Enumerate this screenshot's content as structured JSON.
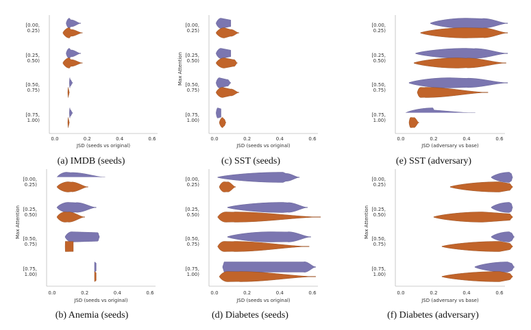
{
  "colors": {
    "upper": "#7b76b0",
    "lower": "#c1642a",
    "upper_edge": "#57528a",
    "lower_edge": "#8c4418",
    "axis": "#bbbbbb"
  },
  "chart_data": [
    {
      "type": "violin",
      "caption": "(a) IMDB (seeds)",
      "xlabel": "JSD (seeds vs original)",
      "ylabel": "",
      "xlim": [
        0.0,
        0.6
      ],
      "xticks": [
        "0.0",
        "0.2",
        "0.4",
        "0.6"
      ],
      "categories": [
        [
          "[0.00,",
          "0.25)"
        ],
        [
          "[0.25,",
          "0.50)"
        ],
        [
          "[0.50,",
          "0.75)"
        ],
        [
          "[0.75,",
          "1.00)"
        ]
      ],
      "series": [
        {
          "values": [
            [
              0.07,
              0.09,
              0.1,
              0.1,
              0.16
            ],
            [
              0.07,
              0.09,
              0.1,
              0.1,
              0.16
            ],
            [
              0.09,
              0.093,
              0.094,
              0.095,
              0.11
            ],
            [
              0.09,
              0.093,
              0.094,
              0.095,
              0.11
            ]
          ]
        },
        {
          "values": [
            [
              0.05,
              0.09,
              0.1,
              0.07,
              0.17
            ],
            [
              0.05,
              0.09,
              0.1,
              0.07,
              0.17
            ],
            [
              0.08,
              0.083,
              0.084,
              0.085,
              0.09
            ],
            [
              0.08,
              0.083,
              0.084,
              0.085,
              0.09
            ]
          ]
        }
      ]
    },
    {
      "type": "violin",
      "caption": "(c) SST (seeds)",
      "xlabel": "JSD (seeds vs original)",
      "ylabel": "Max Attention",
      "xlim": [
        0.0,
        0.6
      ],
      "xticks": [
        "0.0",
        "0.2",
        "0.4",
        "0.6"
      ],
      "categories": [
        [
          "[0.00,",
          "0.25)"
        ],
        [
          "[0.25,",
          "0.50)"
        ],
        [
          "[0.50,",
          "0.75)"
        ],
        [
          "[0.75,",
          "1.00)"
        ]
      ],
      "series": [
        {
          "values": [
            [
              0.01,
              0.04,
              0.1,
              0.08,
              0.1
            ],
            [
              0.01,
              0.04,
              0.1,
              0.08,
              0.1
            ],
            [
              0.01,
              0.03,
              0.08,
              0.08,
              0.1
            ],
            [
              0.01,
              0.02,
              0.06,
              0.08,
              0.04
            ]
          ]
        },
        {
          "values": [
            [
              0.01,
              0.06,
              0.1,
              0.1,
              0.15
            ],
            [
              0.01,
              0.06,
              0.12,
              0.1,
              0.14
            ],
            [
              0.01,
              0.05,
              0.1,
              0.1,
              0.15
            ],
            [
              0.03,
              0.05,
              0.06,
              0.1,
              0.07
            ]
          ]
        }
      ]
    },
    {
      "type": "violin",
      "caption": "(e) SST (adversary)",
      "xlabel": "JSD (adversary vs base)",
      "ylabel": "",
      "xlim": [
        0.0,
        0.6
      ],
      "xticks": [
        "0.0",
        "0.2",
        "0.4",
        "0.6"
      ],
      "categories": [
        [
          "[0.00,",
          "0.25)"
        ],
        [
          "[0.25,",
          "0.50)"
        ],
        [
          "[0.50,",
          "0.75)"
        ],
        [
          "[0.75,",
          "1.00)"
        ]
      ],
      "series": [
        {
          "values": [
            [
              0.18,
              0.4,
              0.5,
              0.75,
              0.65
            ],
            [
              0.09,
              0.4,
              0.45,
              0.8,
              0.65
            ],
            [
              0.05,
              0.3,
              0.4,
              0.7,
              0.65
            ],
            [
              0.03,
              0.2,
              0.05,
              0.3,
              0.46
            ]
          ]
        },
        {
          "values": [
            [
              0.12,
              0.4,
              0.5,
              0.8,
              0.65
            ],
            [
              0.08,
              0.35,
              0.4,
              0.8,
              0.64
            ],
            [
              0.1,
              0.12,
              0.15,
              0.9,
              0.53
            ],
            [
              0.05,
              0.06,
              0.08,
              0.9,
              0.11
            ]
          ]
        }
      ]
    },
    {
      "type": "violin",
      "caption": "(b) Anemia (seeds)",
      "xlabel": "JSD (seeds vs original)",
      "ylabel": "Max Attention",
      "xlim": [
        0.0,
        0.6
      ],
      "xticks": [
        "0.0",
        "0.2",
        "0.4",
        "0.6"
      ],
      "categories": [
        [
          "[0.00,",
          "0.25)"
        ],
        [
          "[0.25,",
          "0.50)"
        ],
        [
          "[0.50,",
          "0.75)"
        ],
        [
          "[0.75,",
          "1.00)"
        ]
      ],
      "series": [
        {
          "values": [
            [
              0.03,
              0.09,
              0.12,
              0.75,
              0.33
            ],
            [
              0.03,
              0.1,
              0.15,
              0.8,
              0.27
            ],
            [
              0.08,
              0.12,
              0.28,
              0.6,
              0.29
            ],
            [
              0.26,
              0.26,
              0.27,
              0.4,
              0.27
            ]
          ]
        },
        {
          "values": [
            [
              0.03,
              0.1,
              0.12,
              0.8,
              0.22
            ],
            [
              0.03,
              0.08,
              0.1,
              0.9,
              0.2
            ],
            [
              0.08,
              0.08,
              0.13,
              0.95,
              0.13
            ],
            [
              0.26,
              0.26,
              0.27,
              0.4,
              0.27
            ]
          ]
        }
      ]
    },
    {
      "type": "violin",
      "caption": "(d) Diabetes (seeds)",
      "xlabel": "JSD (seeds vs original)",
      "ylabel": "",
      "xlim": [
        0.0,
        0.6
      ],
      "xticks": [
        "0.0",
        "0.2",
        "0.4",
        "0.6"
      ],
      "categories": [
        [
          "[0.00,",
          "0.25)"
        ],
        [
          "[0.25,",
          "0.50)"
        ],
        [
          "[0.50,",
          "0.75)"
        ],
        [
          "[0.75,",
          "1.00)"
        ]
      ],
      "series": [
        {
          "values": [
            [
              0.02,
              0.42,
              0.44,
              0.3,
              0.52
            ],
            [
              0.08,
              0.42,
              0.45,
              0.8,
              0.57
            ],
            [
              0.08,
              0.35,
              0.45,
              0.9,
              0.59
            ],
            [
              0.05,
              0.06,
              0.55,
              0.98,
              0.62
            ]
          ]
        },
        {
          "values": [
            [
              0.03,
              0.06,
              0.08,
              0.9,
              0.13
            ],
            [
              0.02,
              0.07,
              0.12,
              0.9,
              0.65
            ],
            [
              0.02,
              0.06,
              0.12,
              0.9,
              0.58
            ],
            [
              0.03,
              0.08,
              0.15,
              0.9,
              0.62
            ]
          ]
        }
      ]
    },
    {
      "type": "violin",
      "caption": "(f) Diabetes (adversary)",
      "xlabel": "JSD (adversary vs base)",
      "ylabel": "Max Attention",
      "xlim": [
        0.0,
        0.6
      ],
      "xticks": [
        "0.0",
        "0.2",
        "0.4",
        "0.6"
      ],
      "categories": [
        [
          "[0.00,",
          "0.25)"
        ],
        [
          "[0.25,",
          "0.50)"
        ],
        [
          "[0.50,",
          "0.75)"
        ],
        [
          "[0.75,",
          "1.00)"
        ]
      ],
      "series": [
        {
          "values": [
            [
              0.55,
              0.66,
              0.67,
              0.4,
              0.68
            ],
            [
              0.55,
              0.66,
              0.67,
              0.5,
              0.68
            ],
            [
              0.55,
              0.66,
              0.67,
              0.5,
              0.69
            ],
            [
              0.45,
              0.65,
              0.67,
              0.4,
              0.69
            ]
          ]
        },
        {
          "values": [
            [
              0.3,
              0.6,
              0.66,
              0.15,
              0.68
            ],
            [
              0.2,
              0.5,
              0.66,
              0.1,
              0.68
            ],
            [
              0.25,
              0.6,
              0.66,
              0.1,
              0.68
            ],
            [
              0.25,
              0.6,
              0.66,
              0.1,
              0.68
            ]
          ]
        }
      ]
    }
  ]
}
